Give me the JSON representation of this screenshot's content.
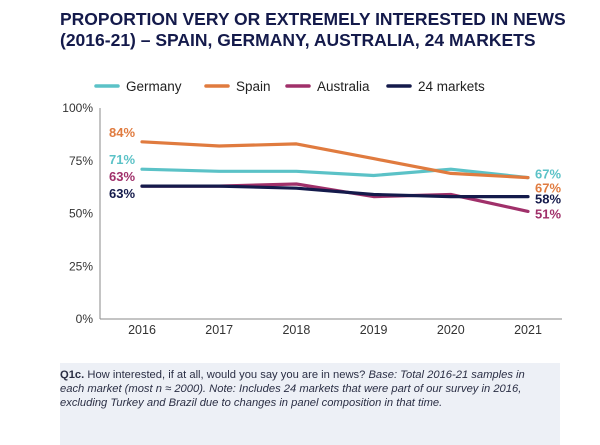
{
  "title_lines": [
    "PROPORTION VERY OR EXTREMELY INTERESTED IN NEWS",
    "(2016-21) – SPAIN, GERMANY, AUSTRALIA, 24 MARKETS"
  ],
  "chart_data": {
    "type": "line",
    "title": "PROPORTION VERY OR EXTREMELY INTERESTED IN NEWS (2016-21) – SPAIN, GERMANY, AUSTRALIA, 24 MARKETS",
    "x": [
      "2016",
      "2017",
      "2018",
      "2019",
      "2020",
      "2021"
    ],
    "y_ticks": [
      "0%",
      "25%",
      "50%",
      "75%",
      "100%"
    ],
    "ylim": [
      0,
      100
    ],
    "xlabel": "",
    "ylabel": "",
    "legend_position": "top",
    "series": [
      {
        "name": "Germany",
        "color": "#5bc2c7",
        "values": [
          71,
          70,
          70,
          68,
          71,
          67
        ],
        "first_label": "71%",
        "last_label": "67%"
      },
      {
        "name": "Spain",
        "color": "#e07b3f",
        "values": [
          84,
          82,
          83,
          76,
          69,
          67
        ],
        "first_label": "84%",
        "last_label": "67%"
      },
      {
        "name": "Australia",
        "color": "#a0306a",
        "values": [
          63,
          63,
          64,
          58,
          59,
          51
        ],
        "first_label": "63%",
        "last_label": "51%"
      },
      {
        "name": "24 markets",
        "color": "#141a4b",
        "values": [
          63,
          63,
          62,
          59,
          58,
          58
        ],
        "first_label": "63%",
        "last_label": "58%"
      }
    ]
  },
  "note": {
    "q_label": "Q1c.",
    "question": " How interested, if at all, would you say you are in news? ",
    "details": "Base: Total 2016-21 samples in each market (most n ≈ 2000). Note: Includes 24 markets that were part of our survey in 2016, excluding Turkey and Brazil due to changes in panel composition in that time."
  }
}
